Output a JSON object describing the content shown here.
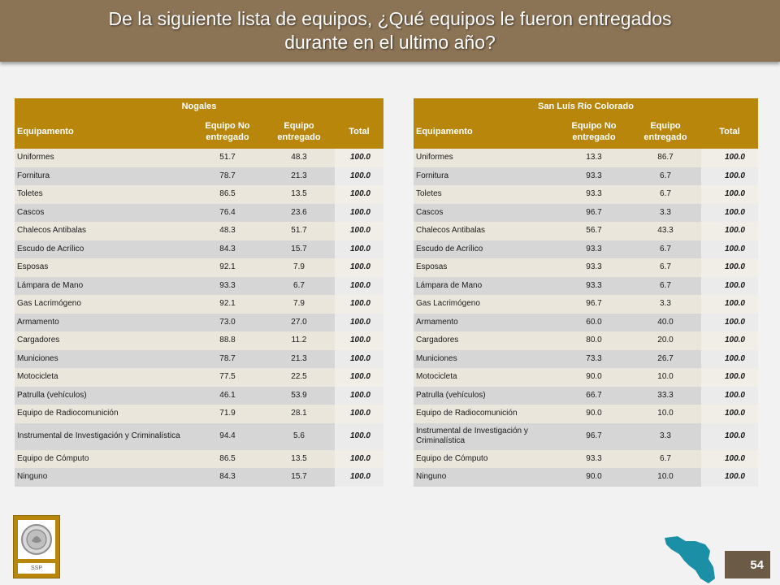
{
  "header": {
    "title": "De la siguiente lista de equipos, ¿Qué equipos le fueron entregados durante en el ultimo año?"
  },
  "columns": {
    "equipamento": "Equipamento",
    "no_entregado": "Equipo No entregado",
    "entregado": "Equipo entregado",
    "total": "Total"
  },
  "tables": [
    {
      "region": "Nogales",
      "rows": [
        {
          "item": "Uniformes",
          "no": "51.7",
          "si": "48.3",
          "total": "100.0"
        },
        {
          "item": "Fornitura",
          "no": "78.7",
          "si": "21.3",
          "total": "100.0"
        },
        {
          "item": "Toletes",
          "no": "86.5",
          "si": "13.5",
          "total": "100.0"
        },
        {
          "item": "Cascos",
          "no": "76.4",
          "si": "23.6",
          "total": "100.0"
        },
        {
          "item": "Chalecos Antibalas",
          "no": "48.3",
          "si": "51.7",
          "total": "100.0"
        },
        {
          "item": "Escudo de Acrílico",
          "no": "84.3",
          "si": "15.7",
          "total": "100.0"
        },
        {
          "item": "Esposas",
          "no": "92.1",
          "si": "7.9",
          "total": "100.0"
        },
        {
          "item": "Lámpara de Mano",
          "no": "93.3",
          "si": "6.7",
          "total": "100.0"
        },
        {
          "item": "Gas Lacrimógeno",
          "no": "92.1",
          "si": "7.9",
          "total": "100.0"
        },
        {
          "item": "Armamento",
          "no": "73.0",
          "si": "27.0",
          "total": "100.0"
        },
        {
          "item": "Cargadores",
          "no": "88.8",
          "si": "11.2",
          "total": "100.0"
        },
        {
          "item": "Municiones",
          "no": "78.7",
          "si": "21.3",
          "total": "100.0"
        },
        {
          "item": "Motocicleta",
          "no": "77.5",
          "si": "22.5",
          "total": "100.0"
        },
        {
          "item": "Patrulla (vehículos)",
          "no": "46.1",
          "si": "53.9",
          "total": "100.0"
        },
        {
          "item": "Equipo de Radiocomunición",
          "no": "71.9",
          "si": "28.1",
          "total": "100.0"
        },
        {
          "item": "Instrumental de Investigación y Criminalística",
          "no": "94.4",
          "si": "5.6",
          "total": "100.0"
        },
        {
          "item": "Equipo de Cómputo",
          "no": "86.5",
          "si": "13.5",
          "total": "100.0"
        },
        {
          "item": "Ninguno",
          "no": "84.3",
          "si": "15.7",
          "total": "100.0"
        }
      ]
    },
    {
      "region": "San Luís Río Colorado",
      "rows": [
        {
          "item": "Uniformes",
          "no": "13.3",
          "si": "86.7",
          "total": "100.0"
        },
        {
          "item": "Fornitura",
          "no": "93.3",
          "si": "6.7",
          "total": "100.0"
        },
        {
          "item": "Toletes",
          "no": "93.3",
          "si": "6.7",
          "total": "100.0"
        },
        {
          "item": "Cascos",
          "no": "96.7",
          "si": "3.3",
          "total": "100.0"
        },
        {
          "item": "Chalecos Antibalas",
          "no": "56.7",
          "si": "43.3",
          "total": "100.0"
        },
        {
          "item": "Escudo de Acrílico",
          "no": "93.3",
          "si": "6.7",
          "total": "100.0"
        },
        {
          "item": "Esposas",
          "no": "93.3",
          "si": "6.7",
          "total": "100.0"
        },
        {
          "item": "Lámpara de Mano",
          "no": "93.3",
          "si": "6.7",
          "total": "100.0"
        },
        {
          "item": "Gas Lacrimógeno",
          "no": "96.7",
          "si": "3.3",
          "total": "100.0"
        },
        {
          "item": "Armamento",
          "no": "60.0",
          "si": "40.0",
          "total": "100.0"
        },
        {
          "item": "Cargadores",
          "no": "80.0",
          "si": "20.0",
          "total": "100.0"
        },
        {
          "item": "Municiones",
          "no": "73.3",
          "si": "26.7",
          "total": "100.0"
        },
        {
          "item": "Motocicleta",
          "no": "90.0",
          "si": "10.0",
          "total": "100.0"
        },
        {
          "item": "Patrulla (vehículos)",
          "no": "66.7",
          "si": "33.3",
          "total": "100.0"
        },
        {
          "item": "Equipo de Radiocomunición",
          "no": "90.0",
          "si": "10.0",
          "total": "100.0"
        },
        {
          "item": "Instrumental de Investigación y Criminalística",
          "no": "96.7",
          "si": "3.3",
          "total": "100.0"
        },
        {
          "item": "Equipo de Cómputo",
          "no": "93.3",
          "si": "6.7",
          "total": "100.0"
        },
        {
          "item": "Ninguno",
          "no": "90.0",
          "si": "10.0",
          "total": "100.0"
        }
      ]
    }
  ],
  "footer": {
    "logo_label": "SSP",
    "logo_icon": "coat-of-arms-seal",
    "map_icon": "sonora-state-map",
    "page_number": "54"
  },
  "colors": {
    "title_bar": "#8b7355",
    "table_header": "#b8860b",
    "map_fill": "#1a8fa6"
  }
}
